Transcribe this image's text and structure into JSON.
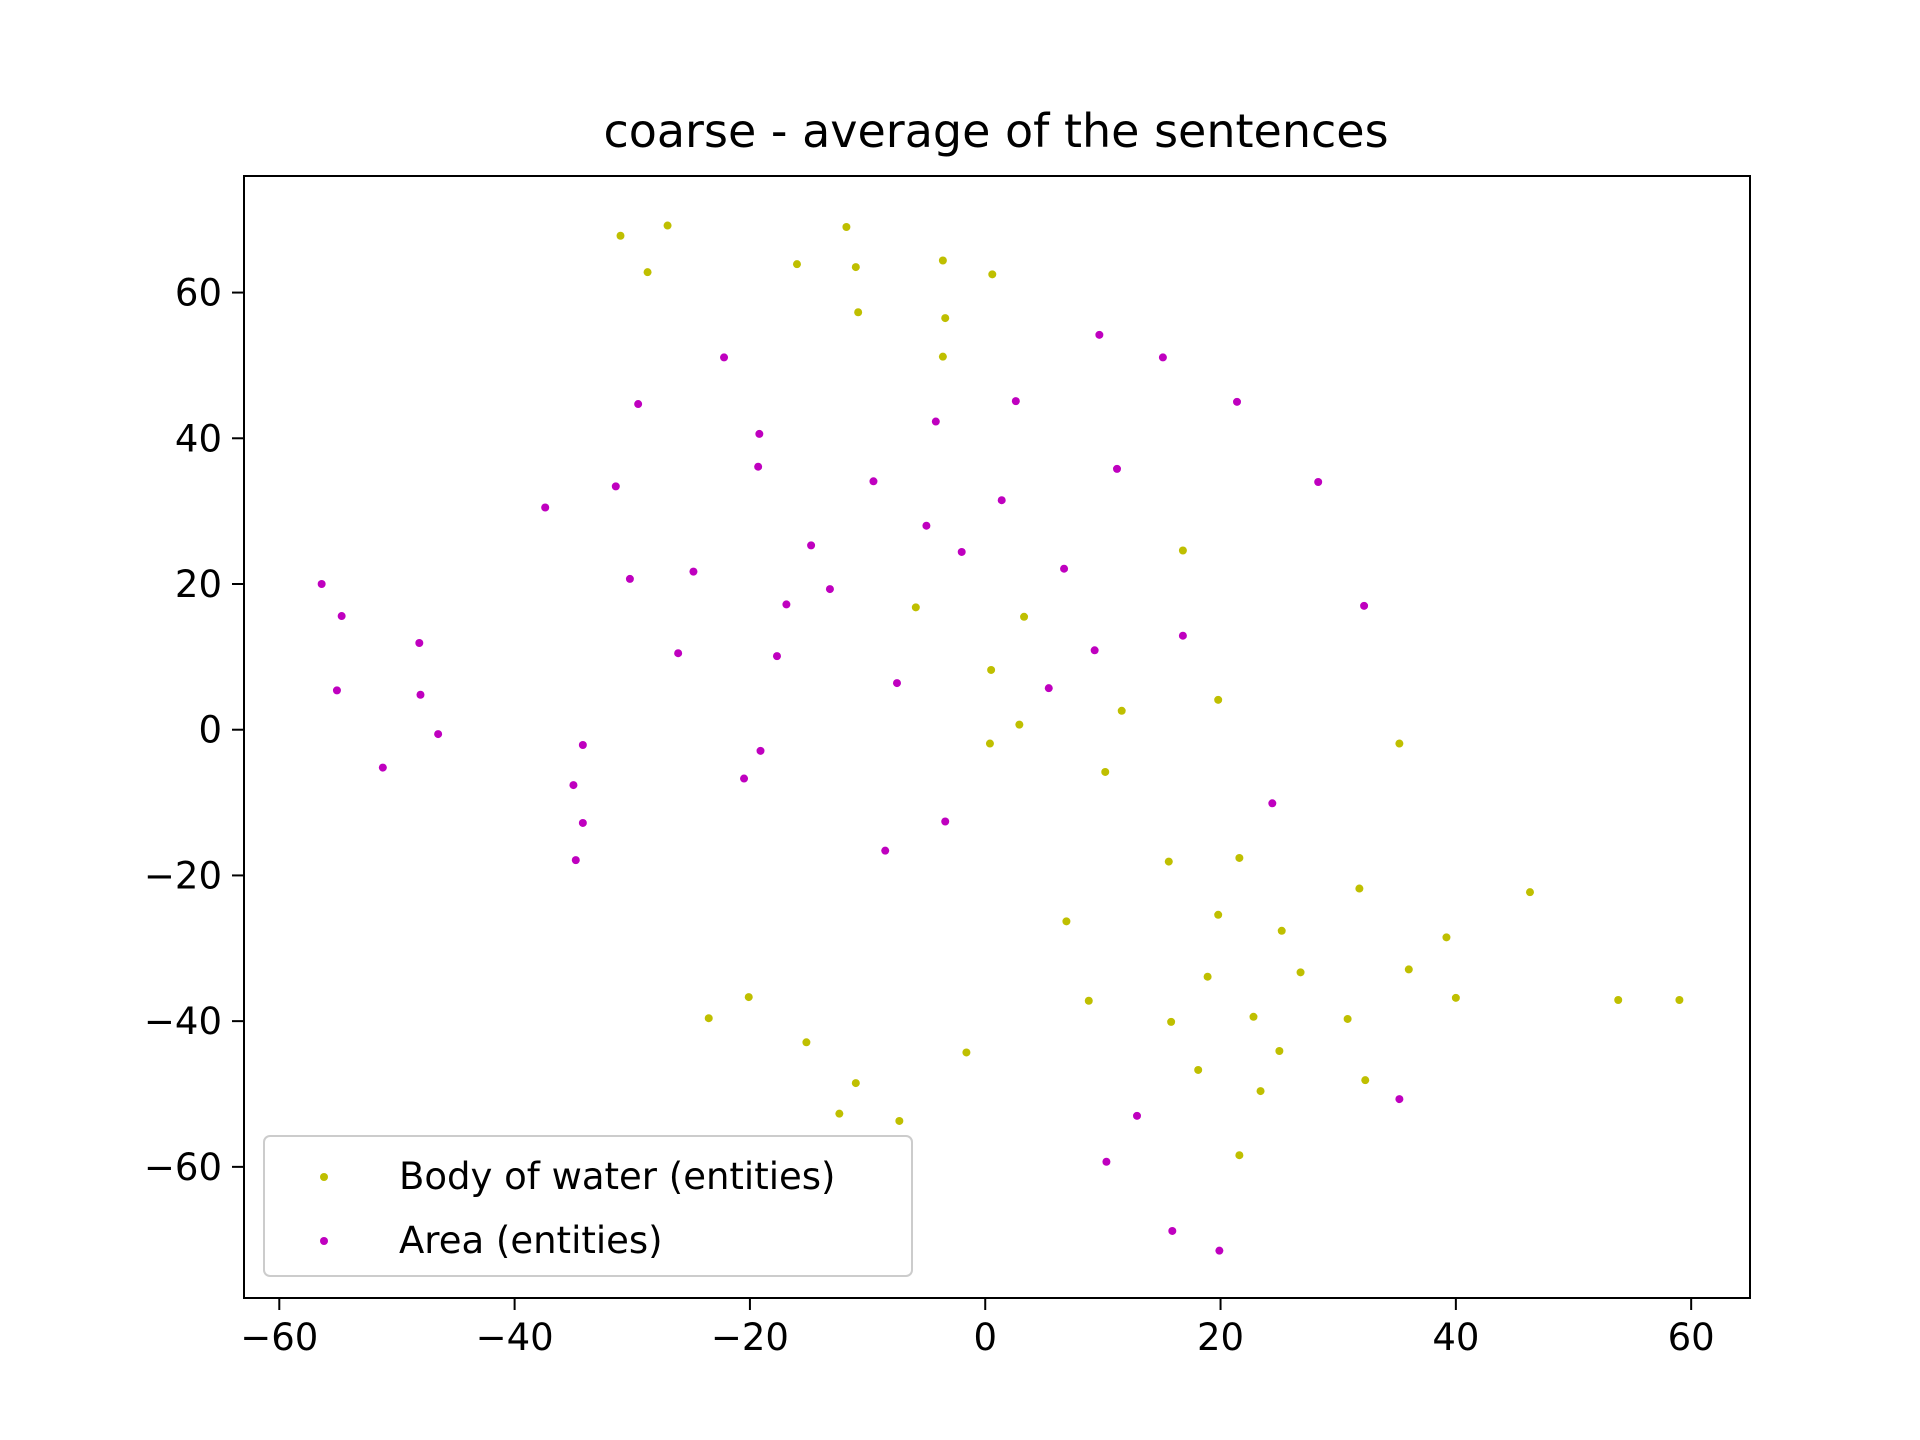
{
  "chart_data": {
    "type": "scatter",
    "title": "coarse - average of the sentences",
    "xlabel": "",
    "ylabel": "",
    "xlim": [
      -63,
      65
    ],
    "ylim": [
      -78,
      76
    ],
    "xticks": [
      -60,
      -40,
      -20,
      0,
      20,
      40,
      60
    ],
    "yticks": [
      -60,
      -40,
      -20,
      0,
      20,
      40,
      60
    ],
    "xtick_labels": [
      "−60",
      "−40",
      "−20",
      "0",
      "20",
      "40",
      "60"
    ],
    "ytick_labels": [
      "−60",
      "−40",
      "−20",
      "0",
      "20",
      "40",
      "60"
    ],
    "grid": false,
    "legend_position": "lower-left",
    "series": [
      {
        "name": "Body of water (entities)",
        "color": "#bfbf00",
        "points": [
          [
            -31,
            67.8
          ],
          [
            -27,
            69.2
          ],
          [
            -28.7,
            62.8
          ],
          [
            -16,
            63.9
          ],
          [
            -11.8,
            69
          ],
          [
            -11,
            63.5
          ],
          [
            -10.8,
            57.3
          ],
          [
            -3.6,
            64.4
          ],
          [
            -3.4,
            56.5
          ],
          [
            -3.6,
            51.2
          ],
          [
            0.6,
            62.5
          ],
          [
            16.8,
            24.6
          ],
          [
            -5.9,
            16.8
          ],
          [
            3.3,
            15.5
          ],
          [
            0.5,
            8.2
          ],
          [
            2.9,
            0.7
          ],
          [
            0.4,
            -1.9
          ],
          [
            11.6,
            2.6
          ],
          [
            19.8,
            4.1
          ],
          [
            35.2,
            -1.9
          ],
          [
            10.2,
            -5.8
          ],
          [
            15.6,
            -18.1
          ],
          [
            21.6,
            -17.6
          ],
          [
            31.8,
            -21.8
          ],
          [
            46.3,
            -22.3
          ],
          [
            6.9,
            -26.3
          ],
          [
            19.8,
            -25.4
          ],
          [
            25.2,
            -27.6
          ],
          [
            39.2,
            -28.5
          ],
          [
            36,
            -32.9
          ],
          [
            26.8,
            -33.3
          ],
          [
            18.9,
            -33.9
          ],
          [
            8.8,
            -37.2
          ],
          [
            40,
            -36.8
          ],
          [
            53.8,
            -37.1
          ],
          [
            59,
            -37.1
          ],
          [
            15.8,
            -40.1
          ],
          [
            22.8,
            -39.4
          ],
          [
            30.8,
            -39.7
          ],
          [
            25,
            -44.1
          ],
          [
            18.1,
            -46.7
          ],
          [
            23.4,
            -49.6
          ],
          [
            32.3,
            -48.1
          ],
          [
            21.6,
            -58.4
          ],
          [
            -23.5,
            -39.6
          ],
          [
            -20.1,
            -36.7
          ],
          [
            -15.2,
            -42.9
          ],
          [
            -11,
            -48.5
          ],
          [
            -12.4,
            -52.7
          ],
          [
            -7.3,
            -53.7
          ],
          [
            -1.6,
            -44.3
          ]
        ]
      },
      {
        "name": "Area (entities)",
        "color": "#bf00bf",
        "points": [
          [
            -22.2,
            51.1
          ],
          [
            -29.5,
            44.7
          ],
          [
            -19.2,
            40.6
          ],
          [
            -19.3,
            36.1
          ],
          [
            -31.4,
            33.4
          ],
          [
            -37.4,
            30.5
          ],
          [
            -30.2,
            20.7
          ],
          [
            -24.8,
            21.7
          ],
          [
            -14.8,
            25.3
          ],
          [
            -16.9,
            17.2
          ],
          [
            -13.2,
            19.3
          ],
          [
            -26.1,
            10.5
          ],
          [
            -17.7,
            10.1
          ],
          [
            -9.5,
            34.1
          ],
          [
            -4.2,
            42.3
          ],
          [
            -5,
            28
          ],
          [
            -2,
            24.4
          ],
          [
            1.4,
            31.5
          ],
          [
            2.6,
            45.1
          ],
          [
            9.7,
            54.2
          ],
          [
            15.1,
            51.1
          ],
          [
            21.4,
            45
          ],
          [
            11.2,
            35.8
          ],
          [
            28.3,
            34
          ],
          [
            6.7,
            22.1
          ],
          [
            32.2,
            17
          ],
          [
            16.8,
            12.9
          ],
          [
            9.3,
            10.9
          ],
          [
            5.4,
            5.7
          ],
          [
            -7.5,
            6.4
          ],
          [
            -56.4,
            20
          ],
          [
            -54.7,
            15.6
          ],
          [
            -55.1,
            5.4
          ],
          [
            -48.1,
            11.9
          ],
          [
            -48,
            4.8
          ],
          [
            -46.5,
            -0.6
          ],
          [
            -51.2,
            -5.2
          ],
          [
            -34.2,
            -2.1
          ],
          [
            -35,
            -7.6
          ],
          [
            -34.2,
            -12.8
          ],
          [
            -34.8,
            -17.9
          ],
          [
            -19.1,
            -2.9
          ],
          [
            -20.5,
            -6.7
          ],
          [
            -8.5,
            -16.6
          ],
          [
            -3.4,
            -12.6
          ],
          [
            24.4,
            -10.1
          ],
          [
            35.2,
            -50.7
          ],
          [
            12.9,
            -53
          ],
          [
            10.3,
            -59.3
          ],
          [
            15.9,
            -68.8
          ],
          [
            19.9,
            -71.5
          ]
        ]
      }
    ]
  }
}
